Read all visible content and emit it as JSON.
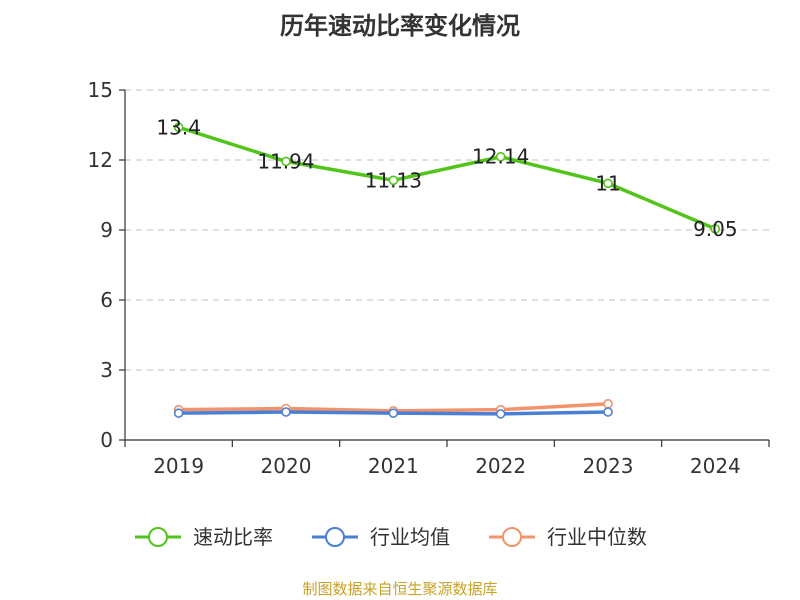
{
  "chart_data": {
    "type": "line",
    "title": "历年速动比率变化情况",
    "categories": [
      "2019",
      "2020",
      "2021",
      "2022",
      "2023",
      "2024"
    ],
    "ylim": [
      0,
      15
    ],
    "yticks": [
      0,
      3,
      6,
      9,
      12,
      15
    ],
    "grid": true,
    "legend_position": "bottom",
    "series": [
      {
        "name": "速动比率",
        "color": "#52c41a",
        "values": [
          13.4,
          11.94,
          11.13,
          12.14,
          11,
          9.05
        ],
        "labels": [
          "13.4",
          "11.94",
          "11.13",
          "12.14",
          "11",
          "9.05"
        ]
      },
      {
        "name": "行业均值",
        "color": "#4a7fd6",
        "values": [
          1.15,
          1.2,
          1.15,
          1.12,
          1.2,
          null
        ]
      },
      {
        "name": "行业中位数",
        "color": "#f2936b",
        "values": [
          1.3,
          1.35,
          1.25,
          1.3,
          1.55,
          null
        ]
      }
    ]
  },
  "source": "制图数据来自恒生聚源数据库"
}
